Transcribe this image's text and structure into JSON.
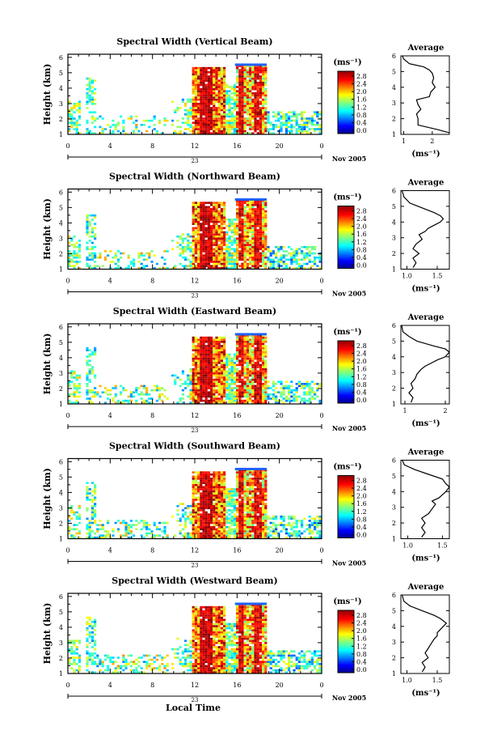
{
  "figure": {
    "bottom_label": "Local Time",
    "date_label": "Nov 2005",
    "day_label": "23",
    "unit_label": "(ms⁻¹)"
  },
  "panels": [
    {
      "title": "Spectral Width (Vertical Beam)",
      "avg_title": "Average",
      "ylabel": "Height (km)",
      "avg_xlabel": "(ms⁻¹)",
      "avg_xticks": [
        "1",
        "2"
      ],
      "avg_xlim": [
        0.9,
        2.6
      ],
      "colorbar_ticks": [
        "2.8",
        "2.4",
        "2.0",
        "1.6",
        "1.2",
        "0.8",
        "0.4",
        "0.0"
      ]
    },
    {
      "title": "Spectral Width (Northward Beam)",
      "avg_title": "Average",
      "ylabel": "Height (km)",
      "avg_xlabel": "(ms⁻¹)",
      "avg_xticks": [
        "1.0",
        "1.5"
      ],
      "avg_xlim": [
        0.9,
        1.7
      ],
      "colorbar_ticks": [
        "2.8",
        "2.4",
        "2.0",
        "1.6",
        "1.2",
        "0.8",
        "0.4",
        "0.0"
      ]
    },
    {
      "title": "Spectral Width (Eastward Beam)",
      "avg_title": "Average",
      "ylabel": "Height (km)",
      "avg_xlabel": "(ms⁻¹)",
      "avg_xticks": [
        "1",
        "2"
      ],
      "avg_xlim": [
        0.9,
        2.1
      ],
      "colorbar_ticks": [
        "2.8",
        "2.4",
        "2.0",
        "1.6",
        "1.2",
        "0.8",
        "0.4",
        "0.0"
      ]
    },
    {
      "title": "Spectral Width (Southward Beam)",
      "avg_title": "Average",
      "ylabel": "Height (km)",
      "avg_xlabel": "(ms⁻¹)",
      "avg_xticks": [
        "1.0",
        "1.5"
      ],
      "avg_xlim": [
        0.9,
        1.6
      ],
      "colorbar_ticks": [
        "2.8",
        "2.4",
        "2.0",
        "1.6",
        "1.2",
        "0.8",
        "0.4",
        "0.0"
      ]
    },
    {
      "title": "Spectral Width (Westward Beam)",
      "avg_title": "Average",
      "ylabel": "Height (km)",
      "avg_xlabel": "(ms⁻¹)",
      "avg_xticks": [
        "1.0",
        "1.5"
      ],
      "avg_xlim": [
        0.9,
        1.7
      ],
      "colorbar_ticks": [
        "2.8",
        "2.4",
        "2.0",
        "1.6",
        "1.2",
        "0.8",
        "0.4",
        "0.0"
      ]
    }
  ],
  "chart_data": [
    {
      "type": "heatmap",
      "title": "Spectral Width (Vertical Beam)",
      "ylabel": "Height (km)",
      "xticks": [
        "0",
        "4",
        "8",
        "12",
        "16",
        "20",
        "0"
      ],
      "yticks": [
        "1",
        "2",
        "3",
        "4",
        "5",
        "6"
      ],
      "xlim": [
        0,
        24
      ],
      "ylim": [
        1,
        6.2
      ],
      "colorbar": {
        "ticks": [
          0.0,
          0.4,
          0.8,
          1.2,
          1.6,
          2.0,
          2.4,
          2.8
        ],
        "unit": "(ms⁻¹)"
      },
      "average": {
        "type": "line",
        "title": "Average",
        "xlabel": "(ms⁻¹)",
        "xticks": [
          "1",
          "2"
        ],
        "yticks": [
          "1",
          "2",
          "3",
          "4",
          "5",
          "6"
        ],
        "xlim": [
          0.9,
          2.6
        ],
        "ylim": [
          1,
          6
        ],
        "x": [
          2.6,
          2.2,
          1.5,
          1.5,
          1.45,
          1.6,
          1.5,
          1.45,
          1.9,
          1.95,
          2.1,
          2.0,
          2.05,
          2.0,
          1.9,
          1.7,
          1.2,
          1.0,
          0.95
        ],
        "y": [
          1.1,
          1.3,
          1.6,
          2.0,
          2.3,
          2.6,
          2.9,
          3.2,
          3.4,
          3.7,
          4.0,
          4.3,
          4.6,
          4.9,
          5.1,
          5.3,
          5.5,
          5.8,
          6.0
        ]
      }
    },
    {
      "type": "heatmap",
      "title": "Spectral Width (Northward Beam)",
      "ylabel": "Height (km)",
      "xticks": [
        "0",
        "4",
        "8",
        "12",
        "16",
        "20",
        "0"
      ],
      "yticks": [
        "1",
        "2",
        "3",
        "4",
        "5",
        "6"
      ],
      "xlim": [
        0,
        24
      ],
      "ylim": [
        1,
        6.2
      ],
      "colorbar": {
        "ticks": [
          0.0,
          0.4,
          0.8,
          1.2,
          1.6,
          2.0,
          2.4,
          2.8
        ],
        "unit": "(ms⁻¹)"
      },
      "average": {
        "type": "line",
        "title": "Average",
        "xlabel": "(ms⁻¹)",
        "xticks": [
          "1.0",
          "1.5"
        ],
        "yticks": [
          "1",
          "2",
          "3",
          "4",
          "5",
          "6"
        ],
        "xlim": [
          0.9,
          1.7
        ],
        "ylim": [
          1,
          6
        ],
        "x": [
          1.1,
          1.15,
          1.1,
          1.2,
          1.1,
          1.15,
          1.25,
          1.2,
          1.3,
          1.35,
          1.45,
          1.55,
          1.6,
          1.55,
          1.45,
          1.25,
          1.05,
          0.95,
          0.92
        ],
        "y": [
          1.1,
          1.4,
          1.7,
          2.0,
          2.3,
          2.6,
          2.9,
          3.2,
          3.4,
          3.6,
          3.8,
          4.0,
          4.2,
          4.4,
          4.6,
          4.9,
          5.2,
          5.6,
          6.0
        ]
      }
    },
    {
      "type": "heatmap",
      "title": "Spectral Width (Eastward Beam)",
      "ylabel": "Height (km)",
      "xticks": [
        "0",
        "4",
        "8",
        "12",
        "16",
        "20",
        "0"
      ],
      "yticks": [
        "1",
        "2",
        "3",
        "4",
        "5",
        "6"
      ],
      "xlim": [
        0,
        24
      ],
      "ylim": [
        1,
        6.2
      ],
      "colorbar": {
        "ticks": [
          0.0,
          0.4,
          0.8,
          1.2,
          1.6,
          2.0,
          2.4,
          2.8
        ],
        "unit": "(ms⁻¹)"
      },
      "average": {
        "type": "line",
        "title": "Average",
        "xlabel": "(ms⁻¹)",
        "xticks": [
          "1",
          "2"
        ],
        "yticks": [
          "1",
          "2",
          "3",
          "4",
          "5",
          "6"
        ],
        "xlim": [
          0.9,
          2.1
        ],
        "ylim": [
          1,
          6
        ],
        "x": [
          1.15,
          1.2,
          1.1,
          1.2,
          1.15,
          1.25,
          1.3,
          1.4,
          1.5,
          1.65,
          1.8,
          2.0,
          2.1,
          2.0,
          1.7,
          1.3,
          1.1,
          0.95,
          0.92
        ],
        "y": [
          1.1,
          1.4,
          1.7,
          2.0,
          2.3,
          2.6,
          2.9,
          3.2,
          3.4,
          3.6,
          3.8,
          4.0,
          4.3,
          4.5,
          4.7,
          5.0,
          5.3,
          5.6,
          6.0
        ]
      }
    },
    {
      "type": "heatmap",
      "title": "Spectral Width (Southward Beam)",
      "ylabel": "Height (km)",
      "xticks": [
        "0",
        "4",
        "8",
        "12",
        "16",
        "20",
        "0"
      ],
      "yticks": [
        "1",
        "2",
        "3",
        "4",
        "5",
        "6"
      ],
      "xlim": [
        0,
        24
      ],
      "ylim": [
        1,
        6.2
      ],
      "colorbar": {
        "ticks": [
          0.0,
          0.4,
          0.8,
          1.2,
          1.6,
          2.0,
          2.4,
          2.8
        ],
        "unit": "(ms⁻¹)"
      },
      "average": {
        "type": "line",
        "title": "Average",
        "xlabel": "(ms⁻¹)",
        "xticks": [
          "1.0",
          "1.5"
        ],
        "yticks": [
          "1",
          "2",
          "3",
          "4",
          "5",
          "6"
        ],
        "xlim": [
          0.9,
          1.6
        ],
        "ylim": [
          1,
          6
        ],
        "x": [
          1.2,
          1.25,
          1.2,
          1.25,
          1.2,
          1.3,
          1.35,
          1.4,
          1.35,
          1.45,
          1.5,
          1.55,
          1.6,
          1.55,
          1.5,
          1.3,
          1.1,
          0.95,
          0.92
        ],
        "y": [
          1.1,
          1.4,
          1.7,
          2.0,
          2.3,
          2.6,
          2.9,
          3.2,
          3.4,
          3.6,
          3.8,
          4.0,
          4.3,
          4.5,
          4.8,
          5.1,
          5.4,
          5.7,
          6.0
        ]
      }
    },
    {
      "type": "heatmap",
      "title": "Spectral Width (Westward Beam)",
      "ylabel": "Height (km)",
      "xticks": [
        "0",
        "4",
        "8",
        "12",
        "16",
        "20",
        "0"
      ],
      "yticks": [
        "1",
        "2",
        "3",
        "4",
        "5",
        "6"
      ],
      "xlim": [
        0,
        24
      ],
      "ylim": [
        1,
        6.2
      ],
      "colorbar": {
        "ticks": [
          0.0,
          0.4,
          0.8,
          1.2,
          1.6,
          2.0,
          2.4,
          2.8
        ],
        "unit": "(ms⁻¹)"
      },
      "average": {
        "type": "line",
        "title": "Average",
        "xlabel": "(ms⁻¹)",
        "xticks": [
          "1.0",
          "1.5"
        ],
        "yticks": [
          "1",
          "2",
          "3",
          "4",
          "5",
          "6"
        ],
        "xlim": [
          0.9,
          1.7
        ],
        "ylim": [
          1,
          6
        ],
        "x": [
          1.25,
          1.3,
          1.25,
          1.35,
          1.3,
          1.35,
          1.4,
          1.45,
          1.5,
          1.5,
          1.55,
          1.6,
          1.65,
          1.55,
          1.45,
          1.25,
          1.05,
          0.95,
          0.92
        ],
        "y": [
          1.1,
          1.4,
          1.7,
          2.0,
          2.3,
          2.6,
          2.9,
          3.2,
          3.4,
          3.6,
          3.8,
          4.0,
          4.2,
          4.5,
          4.7,
          5.0,
          5.3,
          5.6,
          6.0
        ]
      }
    }
  ]
}
